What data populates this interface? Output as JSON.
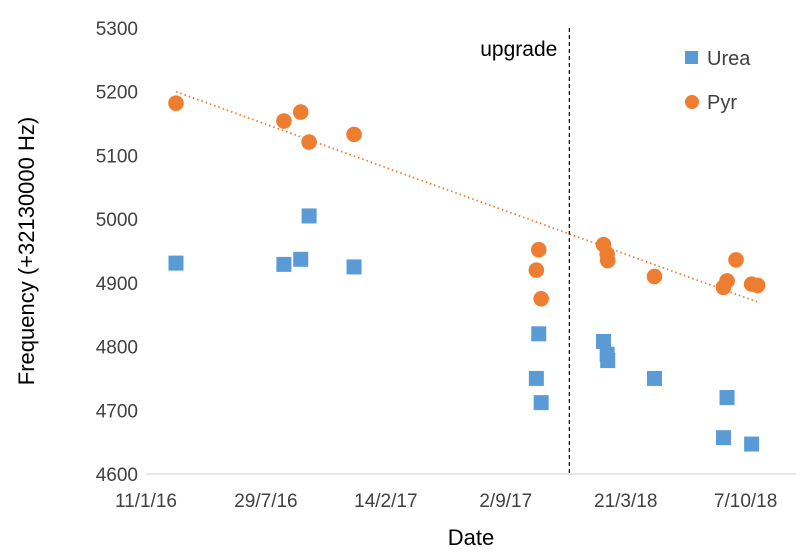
{
  "chart_data": {
    "type": "scatter",
    "title": "",
    "xlabel": "Date",
    "ylabel": "Frequency (+32130000 Hz)",
    "xlim": [
      "2016-01-11",
      "2018-12-30"
    ],
    "ylim": [
      4600,
      5300
    ],
    "yticks": [
      4600,
      4700,
      4800,
      4900,
      5000,
      5100,
      5200,
      5300
    ],
    "xticks": [
      {
        "date": "2016-01-11",
        "label": "11/1/16"
      },
      {
        "date": "2016-07-29",
        "label": "29/7/16"
      },
      {
        "date": "2017-02-14",
        "label": "14/2/17"
      },
      {
        "date": "2017-09-02",
        "label": "2/9/17"
      },
      {
        "date": "2018-03-21",
        "label": "21/3/18"
      },
      {
        "date": "2018-10-07",
        "label": "7/10/18"
      }
    ],
    "grid": false,
    "legend_position": "top-right",
    "series": [
      {
        "name": "Urea",
        "marker": "square",
        "color": "#5B9BD5",
        "points": [
          {
            "x": "2016-03-01",
            "y": 4931
          },
          {
            "x": "2016-08-28",
            "y": 4929
          },
          {
            "x": "2016-09-25",
            "y": 4937
          },
          {
            "x": "2016-10-09",
            "y": 5005
          },
          {
            "x": "2016-12-23",
            "y": 4925
          },
          {
            "x": "2017-10-23",
            "y": 4750
          },
          {
            "x": "2017-10-27",
            "y": 4820
          },
          {
            "x": "2017-10-31",
            "y": 4712
          },
          {
            "x": "2018-02-12",
            "y": 4808
          },
          {
            "x": "2018-02-18",
            "y": 4788
          },
          {
            "x": "2018-02-19",
            "y": 4778
          },
          {
            "x": "2018-05-08",
            "y": 4750
          },
          {
            "x": "2018-08-31",
            "y": 4657
          },
          {
            "x": "2018-09-06",
            "y": 4720
          },
          {
            "x": "2018-10-17",
            "y": 4647
          }
        ]
      },
      {
        "name": "Pyr",
        "marker": "circle",
        "color": "#ED7D31",
        "points": [
          {
            "x": "2016-03-01",
            "y": 5182
          },
          {
            "x": "2016-08-28",
            "y": 5154
          },
          {
            "x": "2016-09-25",
            "y": 5168
          },
          {
            "x": "2016-10-09",
            "y": 5121
          },
          {
            "x": "2016-12-23",
            "y": 5133
          },
          {
            "x": "2017-10-23",
            "y": 4920
          },
          {
            "x": "2017-10-27",
            "y": 4952
          },
          {
            "x": "2017-10-31",
            "y": 4875
          },
          {
            "x": "2018-02-12",
            "y": 4960
          },
          {
            "x": "2018-02-18",
            "y": 4945
          },
          {
            "x": "2018-02-19",
            "y": 4935
          },
          {
            "x": "2018-05-08",
            "y": 4910
          },
          {
            "x": "2018-08-31",
            "y": 4893
          },
          {
            "x": "2018-09-06",
            "y": 4903
          },
          {
            "x": "2018-09-21",
            "y": 4936
          },
          {
            "x": "2018-10-17",
            "y": 4898
          },
          {
            "x": "2018-10-27",
            "y": 4896
          }
        ]
      }
    ],
    "trendline": {
      "series": "Pyr",
      "type": "linear",
      "style": "dotted",
      "color": "#ED7D31",
      "from": {
        "x": "2016-03-01",
        "y": 5200
      },
      "to": {
        "x": "2018-10-27",
        "y": 4870
      }
    },
    "annotations": [
      {
        "type": "vertical-line",
        "style": "dashed",
        "x": "2017-12-17",
        "label": "upgrade"
      }
    ]
  }
}
